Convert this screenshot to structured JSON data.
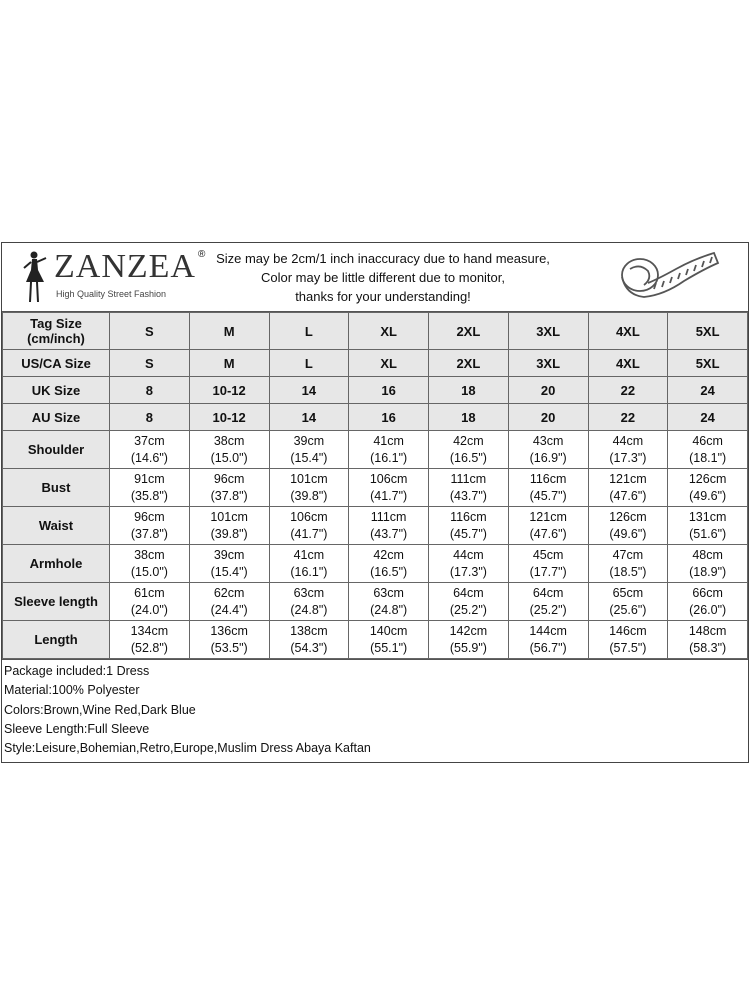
{
  "brand": {
    "name": "ZANZEA",
    "registered": "®",
    "tagline": "High Quality Street Fashion"
  },
  "notice": [
    "Size may be 2cm/1 inch inaccuracy due to hand measure,",
    "Color may be little different due to monitor,",
    "thanks for your understanding!"
  ],
  "icons": {
    "logo": "woman-silhouette-icon",
    "measure": "measuring-tape-icon"
  },
  "size_rows": [
    {
      "label": "Tag Size (cm/inch)",
      "values": [
        "S",
        "M",
        "L",
        "XL",
        "2XL",
        "3XL",
        "4XL",
        "5XL"
      ]
    },
    {
      "label": "US/CA Size",
      "values": [
        "S",
        "M",
        "L",
        "XL",
        "2XL",
        "3XL",
        "4XL",
        "5XL"
      ]
    },
    {
      "label": "UK Size",
      "values": [
        "8",
        "10-12",
        "14",
        "16",
        "18",
        "20",
        "22",
        "24"
      ]
    },
    {
      "label": "AU Size",
      "values": [
        "8",
        "10-12",
        "14",
        "16",
        "18",
        "20",
        "22",
        "24"
      ]
    }
  ],
  "measure_rows": [
    {
      "label": "Shoulder",
      "cm": [
        "37cm",
        "38cm",
        "39cm",
        "41cm",
        "42cm",
        "43cm",
        "44cm",
        "46cm"
      ],
      "inch": [
        "(14.6\")",
        "(15.0\")",
        "(15.4\")",
        "(16.1\")",
        "(16.5\")",
        "(16.9\")",
        "(17.3\")",
        "(18.1\")"
      ]
    },
    {
      "label": "Bust",
      "cm": [
        "91cm",
        "96cm",
        "101cm",
        "106cm",
        "111cm",
        "116cm",
        "121cm",
        "126cm"
      ],
      "inch": [
        "(35.8\")",
        "(37.8\")",
        "(39.8\")",
        "(41.7\")",
        "(43.7\")",
        "(45.7\")",
        "(47.6\")",
        "(49.6\")"
      ]
    },
    {
      "label": "Waist",
      "cm": [
        "96cm",
        "101cm",
        "106cm",
        "111cm",
        "116cm",
        "121cm",
        "126cm",
        "131cm"
      ],
      "inch": [
        "(37.8\")",
        "(39.8\")",
        "(41.7\")",
        "(43.7\")",
        "(45.7\")",
        "(47.6\")",
        "(49.6\")",
        "(51.6\")"
      ]
    },
    {
      "label": "Armhole",
      "cm": [
        "38cm",
        "39cm",
        "41cm",
        "42cm",
        "44cm",
        "45cm",
        "47cm",
        "48cm"
      ],
      "inch": [
        "(15.0\")",
        "(15.4\")",
        "(16.1\")",
        "(16.5\")",
        "(17.3\")",
        "(17.7\")",
        "(18.5\")",
        "(18.9\")"
      ]
    },
    {
      "label": "Sleeve length",
      "cm": [
        "61cm",
        "62cm",
        "63cm",
        "63cm",
        "64cm",
        "64cm",
        "65cm",
        "66cm"
      ],
      "inch": [
        "(24.0\")",
        "(24.4\")",
        "(24.8\")",
        "(24.8\")",
        "(25.2\")",
        "(25.2\")",
        "(25.6\")",
        "(26.0\")"
      ]
    },
    {
      "label": "Length",
      "cm": [
        "134cm",
        "136cm",
        "138cm",
        "140cm",
        "142cm",
        "144cm",
        "146cm",
        "148cm"
      ],
      "inch": [
        "(52.8\")",
        "(53.5\")",
        "(54.3\")",
        "(55.1\")",
        "(55.9\")",
        "(56.7\")",
        "(57.5\")",
        "(58.3\")"
      ]
    }
  ],
  "details": [
    "Package included:1 Dress",
    "Material:100% Polyester",
    "Colors:Brown,Wine Red,Dark Blue",
    "Sleeve Length:Full Sleeve",
    "Style:Leisure,Bohemian,Retro,Europe,Muslim Dress Abaya Kaftan"
  ]
}
